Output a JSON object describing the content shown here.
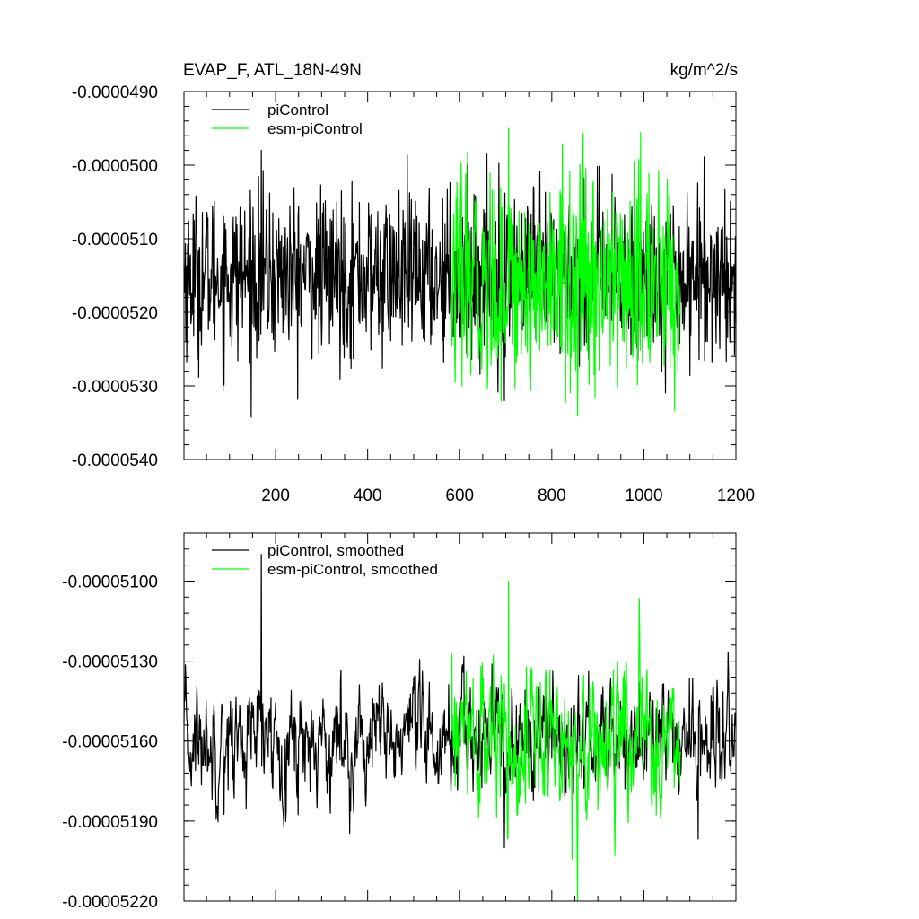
{
  "chart_data": [
    {
      "type": "line",
      "title": "EVAP_F, ATL_18N-49N",
      "units": "kg/m^2/s",
      "xlabel": "",
      "ylabel": "",
      "xlim": [
        1,
        1200
      ],
      "ylim": [
        -5.4e-05,
        -4.9e-05
      ],
      "xticks": [
        200,
        400,
        600,
        800,
        1000,
        1200
      ],
      "xtick_labels": [
        "200",
        "400",
        "600",
        "800",
        "1000",
        "1200"
      ],
      "yticks": [
        -4.9e-05,
        -5e-05,
        -5.1e-05,
        -5.2e-05,
        -5.3e-05,
        -5.4e-05
      ],
      "ytick_labels": [
        "-0.0000490",
        "-0.0000500",
        "-0.0000510",
        "-0.0000520",
        "-0.0000530",
        "-0.0000540"
      ],
      "legend_position": "top-left",
      "series": [
        {
          "name": "piControl",
          "color": "#000000",
          "x_range": [
            1,
            1200
          ],
          "mean": -5.15e-05,
          "noise_sd": 5.5e-07,
          "max": -4.98e-05,
          "min": -5.32e-05
        },
        {
          "name": "esm-piControl",
          "color": "#00ff00",
          "x_range": [
            581,
            1080
          ],
          "mean": -5.16e-05,
          "noise_sd": 7e-07,
          "max": -4.95e-05,
          "min": -5.34e-05
        }
      ]
    },
    {
      "type": "line",
      "title": "",
      "xlabel": "",
      "ylabel": "",
      "xlim": [
        1,
        1200
      ],
      "ylim": [
        -5.22e-05,
        -5.082e-05
      ],
      "xticks": [
        200,
        400,
        600,
        800,
        1000,
        1200
      ],
      "yticks": [
        -5.1e-05,
        -5.13e-05,
        -5.16e-05,
        -5.19e-05,
        -5.22e-05
      ],
      "ytick_labels": [
        "-0.00005100",
        "-0.00005130",
        "-0.00005160",
        "-0.00005190",
        "-0.00005220"
      ],
      "legend_position": "top-left",
      "series": [
        {
          "name": "piControl, smoothed",
          "color": "#000000",
          "x_range": [
            1,
            1200
          ],
          "mean": -5.16e-05,
          "noise_sd": 1.2e-07,
          "max": -5.09e-05,
          "min": -5.2e-05
        },
        {
          "name": "esm-piControl, smoothed",
          "color": "#00ff00",
          "x_range": [
            581,
            1080
          ],
          "mean": -5.16e-05,
          "noise_sd": 1.6e-07,
          "max": -5.1e-05,
          "min": -5.22e-05
        }
      ]
    }
  ]
}
